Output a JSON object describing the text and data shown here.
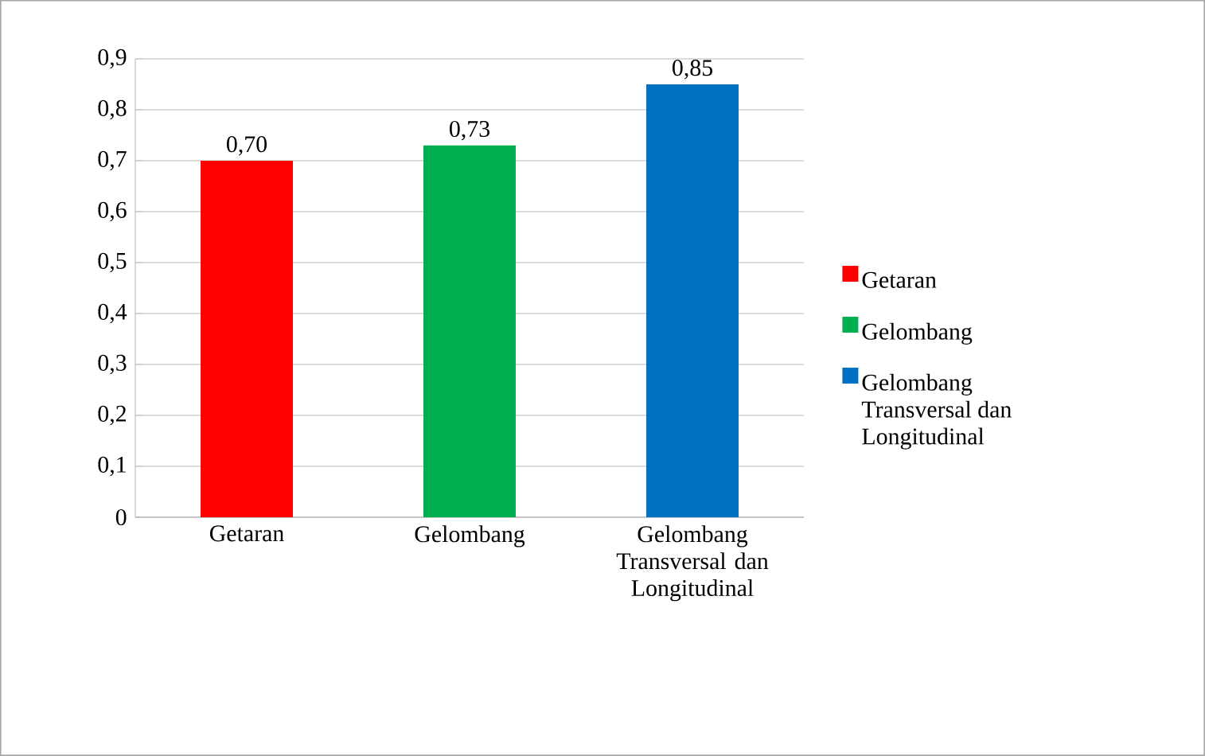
{
  "chart_data": {
    "type": "bar",
    "categories": [
      "Getaran",
      "Gelombang",
      "Gelombang Transversal dan Longitudinal"
    ],
    "series": [
      {
        "name": "Getaran",
        "color": "#ff0000",
        "values": [
          0.7,
          null,
          null
        ],
        "value_labels": [
          "0,70",
          null,
          null
        ]
      },
      {
        "name": "Gelombang",
        "color": "#00b050",
        "values": [
          null,
          0.73,
          null
        ],
        "value_labels": [
          null,
          "0,73",
          null
        ]
      },
      {
        "name": "Gelombang Transversal dan Longitudinal",
        "color": "#0070c0",
        "values": [
          null,
          null,
          0.85
        ],
        "value_labels": [
          null,
          null,
          "0,85"
        ]
      }
    ],
    "ylim": [
      0,
      0.9
    ],
    "yticks": [
      0,
      {
        "value": 0.1,
        "label": "0,1"
      },
      {
        "value": 0.2,
        "label": "0,2"
      },
      {
        "value": 0.3,
        "label": "0,3"
      },
      {
        "value": 0.4,
        "label": "0,4"
      },
      {
        "value": 0.5,
        "label": "0,5"
      },
      {
        "value": 0.6,
        "label": "0,6"
      },
      {
        "value": 0.7,
        "label": "0,7"
      },
      {
        "value": 0.8,
        "label": "0,8"
      },
      {
        "value": 0.9,
        "label": "0,9"
      }
    ],
    "grid": "y",
    "legend": "right"
  }
}
